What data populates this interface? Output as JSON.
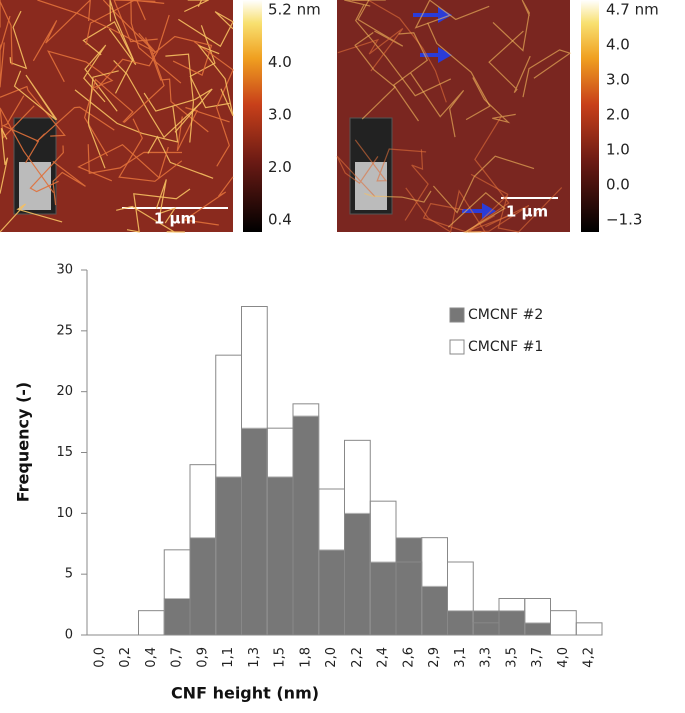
{
  "panels": [
    {
      "colorbar_labels": [
        "5.2 nm",
        "4.0",
        "3.0",
        "2.0",
        "0.4"
      ],
      "scale_bar": "1 µm"
    },
    {
      "colorbar_labels": [
        "4.7 nm",
        "4.0",
        "3.0",
        "2.0",
        "1.0",
        "0.0",
        "−1.3"
      ],
      "scale_bar": "1 µm"
    }
  ],
  "chart_data": {
    "type": "bar",
    "x_label": "CNF height (nm)",
    "y_label": "Frequency (-)",
    "categories": [
      "0,0",
      "0,2",
      "0,4",
      "0,7",
      "0,9",
      "1,1",
      "1,3",
      "1,5",
      "1,8",
      "2,0",
      "2,2",
      "2,4",
      "2,6",
      "2,9",
      "3,1",
      "3,3",
      "3,5",
      "3,7",
      "4,0",
      "4,2"
    ],
    "series": [
      {
        "name": "CMCNF #2",
        "color": "#777777",
        "values": [
          0,
          0,
          0,
          3,
          8,
          13,
          17,
          13,
          18,
          7,
          10,
          6,
          8,
          4,
          2,
          2,
          2,
          1,
          0,
          0
        ]
      },
      {
        "name": "CMCNF #1",
        "color": "#ffffff",
        "values": [
          0,
          0,
          2,
          7,
          14,
          23,
          27,
          17,
          19,
          12,
          16,
          11,
          6,
          8,
          6,
          1,
          3,
          3,
          2,
          1
        ]
      }
    ],
    "ylim": [
      0,
      30
    ],
    "yticks": [
      0,
      5,
      10,
      15,
      20,
      25,
      30
    ]
  }
}
